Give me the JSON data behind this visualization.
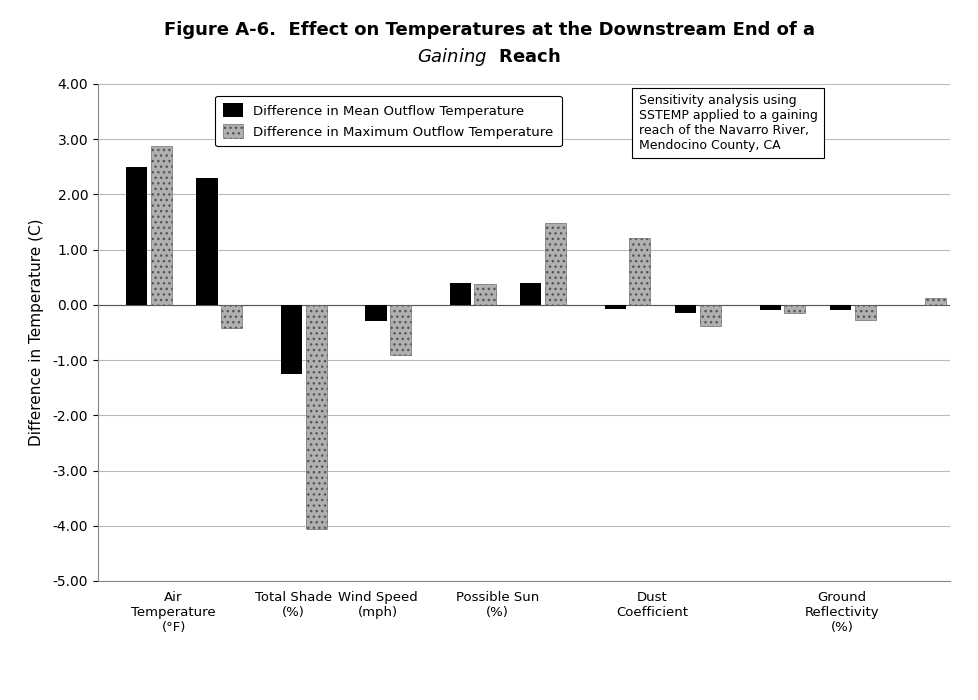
{
  "title_line1": "Figure A-6.  Effect on Temperatures at the Downstream End of a",
  "title_line2_italic": "Gaining",
  "title_line2_normal": " Reach",
  "ylabel": "Difference in Temperature (C)",
  "categories": [
    "Air\nTemperature\n(°F)",
    "Total Shade\n(%)",
    "Wind Speed\n(mph)",
    "Possible Sun\n(%)",
    "Dust\nCoefficient",
    "Ground\nReflectivity\n(%)"
  ],
  "bar_groups": [
    {
      "cat": 0,
      "mean": 2.5,
      "max": 2.87
    },
    {
      "cat": 0,
      "mean": 2.3,
      "max": -0.42
    },
    {
      "cat": 1,
      "mean": -1.25,
      "max": -4.05
    },
    {
      "cat": 2,
      "mean": -0.3,
      "max": -0.9
    },
    {
      "cat": 3,
      "mean": 0.4,
      "max": 0.38
    },
    {
      "cat": 3,
      "mean": 0.4,
      "max": 1.48
    },
    {
      "cat": 4,
      "mean": -0.08,
      "max": 1.22
    },
    {
      "cat": 4,
      "mean": -0.15,
      "max": -0.38
    },
    {
      "cat": 5,
      "mean": -0.1,
      "max": -0.15
    },
    {
      "cat": 5,
      "mean": -0.1,
      "max": -0.28
    },
    {
      "cat": 5,
      "mean": 0.0,
      "max": 0.13
    }
  ],
  "ylim_min": -5.0,
  "ylim_max": 4.0,
  "yticks": [
    -5.0,
    -4.0,
    -3.0,
    -2.0,
    -1.0,
    0.0,
    1.0,
    2.0,
    3.0,
    4.0
  ],
  "mean_color": "#000000",
  "max_color": "#b0b0b0",
  "annotation": "Sensitivity analysis using\nSSTEMP applied to a gaining\nreach of the Navarro River,\nMendocino County, CA",
  "legend_mean": "Difference in Mean Outflow Temperature",
  "legend_max": "Difference in Maximum Outflow Temperature",
  "background_color": "#ffffff"
}
